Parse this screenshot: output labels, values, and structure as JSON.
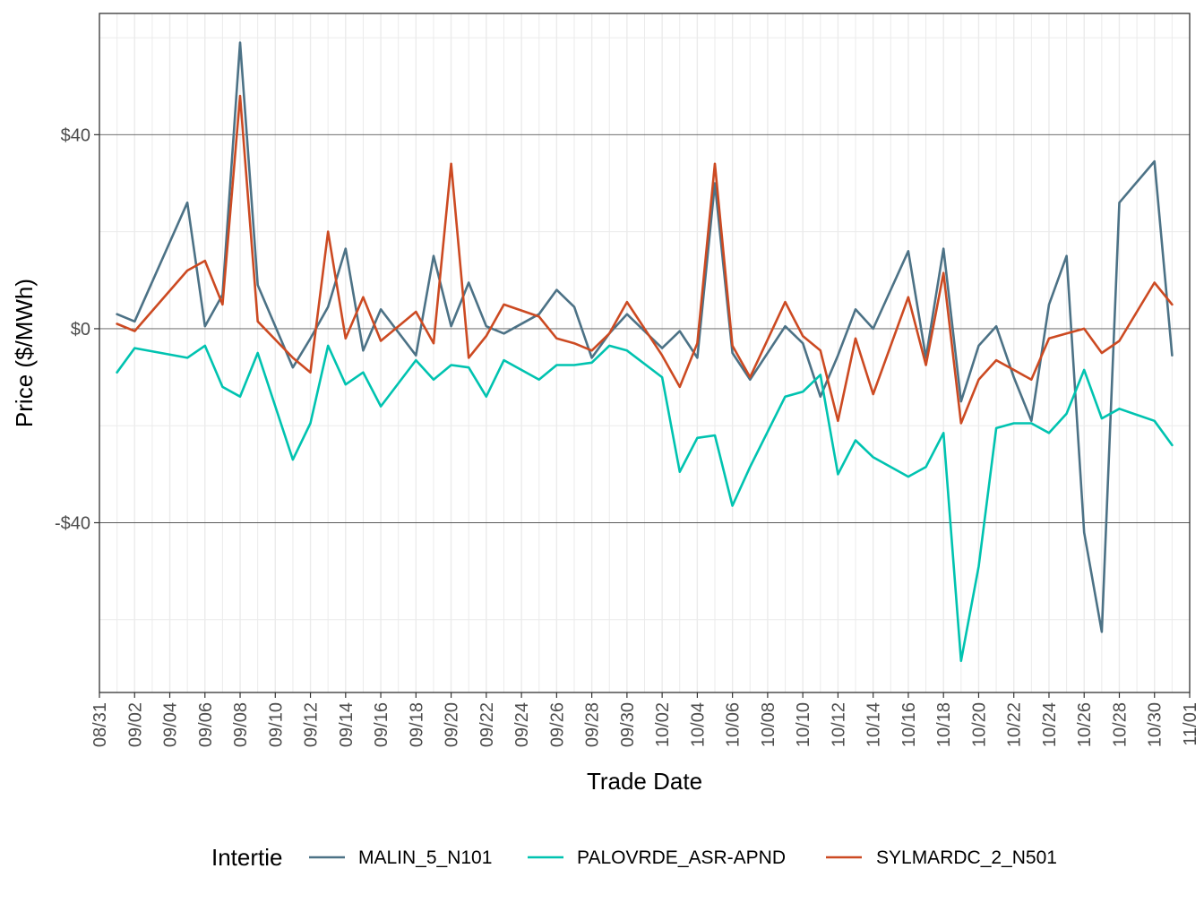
{
  "chart_data": {
    "type": "line",
    "title": "",
    "xlabel": "Trade Date",
    "ylabel": "Price ($/MWh)",
    "x_tick_labels": [
      "08/31",
      "09/02",
      "09/04",
      "09/06",
      "09/08",
      "09/10",
      "09/12",
      "09/14",
      "09/16",
      "09/18",
      "09/20",
      "09/22",
      "09/24",
      "09/26",
      "09/28",
      "09/30",
      "10/02",
      "10/04",
      "10/06",
      "10/08",
      "10/10",
      "10/12",
      "10/14",
      "10/16",
      "10/18",
      "10/20",
      "10/22",
      "10/24",
      "10/26",
      "10/28",
      "10/30",
      "11/01"
    ],
    "y_ticks": [
      -40,
      0,
      40
    ],
    "y_tick_labels": [
      "-$40",
      "$0",
      "$40"
    ],
    "ylim": [
      -75,
      65
    ],
    "xlim": [
      "2024-08-31",
      "2024-11-01"
    ],
    "grid": true,
    "legend_title": "Intertie",
    "legend_position": "bottom",
    "x": [
      "2024-09-01",
      "2024-09-02",
      "2024-09-05",
      "2024-09-06",
      "2024-09-07",
      "2024-09-08",
      "2024-09-09",
      "2024-09-11",
      "2024-09-12",
      "2024-09-13",
      "2024-09-14",
      "2024-09-15",
      "2024-09-16",
      "2024-09-18",
      "2024-09-19",
      "2024-09-20",
      "2024-09-21",
      "2024-09-22",
      "2024-09-23",
      "2024-09-25",
      "2024-09-26",
      "2024-09-27",
      "2024-09-28",
      "2024-09-29",
      "2024-09-30",
      "2024-10-02",
      "2024-10-03",
      "2024-10-04",
      "2024-10-05",
      "2024-10-06",
      "2024-10-07",
      "2024-10-09",
      "2024-10-10",
      "2024-10-11",
      "2024-10-12",
      "2024-10-13",
      "2024-10-14",
      "2024-10-16",
      "2024-10-17",
      "2024-10-18",
      "2024-10-19",
      "2024-10-20",
      "2024-10-21",
      "2024-10-22",
      "2024-10-23",
      "2024-10-24",
      "2024-10-25",
      "2024-10-26",
      "2024-10-27",
      "2024-10-28",
      "2024-10-30",
      "2024-10-31"
    ],
    "series": [
      {
        "name": "MALIN_5_N101",
        "color": "#4c7286",
        "values": [
          3,
          1.5,
          26,
          0.5,
          7,
          59,
          9,
          -8,
          -2,
          4.5,
          16.5,
          -4.5,
          4,
          -5.5,
          15,
          0.5,
          9.5,
          0.5,
          -1,
          3,
          8,
          4.5,
          -6,
          -1,
          3,
          -4,
          -0.5,
          -6,
          30,
          -5,
          -10.5,
          0.5,
          -3,
          -14,
          -5.5,
          4,
          0,
          16,
          -6,
          16.5,
          -15,
          -3.5,
          0.5,
          -10,
          -19,
          5,
          15,
          -42,
          -62.5,
          26,
          34.5,
          -5.5
        ]
      },
      {
        "name": "PALOVRDE_ASR-APND",
        "color": "#00c3b0",
        "values": [
          -9,
          -4,
          -6,
          -3.5,
          -12,
          -14,
          -5,
          -27,
          -19.5,
          -3.5,
          -11.5,
          -9,
          -16,
          -6.5,
          -10.5,
          -7.5,
          -8,
          -14,
          -6.5,
          -10.5,
          -7.5,
          -7.5,
          -7,
          -3.5,
          -4.5,
          -10,
          -29.5,
          -22.5,
          -22,
          -36.5,
          -28.5,
          -14,
          -13,
          -9.5,
          -30,
          -23,
          -26.5,
          -30.5,
          -28.5,
          -21.5,
          -68.5,
          -49,
          -20.5,
          -19.5,
          -19.5,
          -21.5,
          -17.5,
          -8.5,
          -18.5,
          -16.5,
          -19,
          -24
        ]
      },
      {
        "name": "SYLMARDC_2_N501",
        "color": "#cc4a22",
        "values": [
          1,
          -0.5,
          12,
          14,
          5,
          48,
          1.5,
          -6,
          -9,
          20,
          -2,
          6.5,
          -2.5,
          3.5,
          -3,
          34,
          -6,
          -1.5,
          5,
          2.5,
          -2,
          -3,
          -4.5,
          -1,
          5.5,
          -5.5,
          -12,
          -3,
          34,
          -3.5,
          -10,
          5.5,
          -1.5,
          -4.5,
          -19,
          -2,
          -13.5,
          6.5,
          -7.5,
          11.5,
          -19.5,
          -10.5,
          -6.5,
          -8.5,
          -10.5,
          -2,
          -1,
          0,
          -5,
          -2.5,
          9.5,
          5
        ]
      }
    ]
  }
}
